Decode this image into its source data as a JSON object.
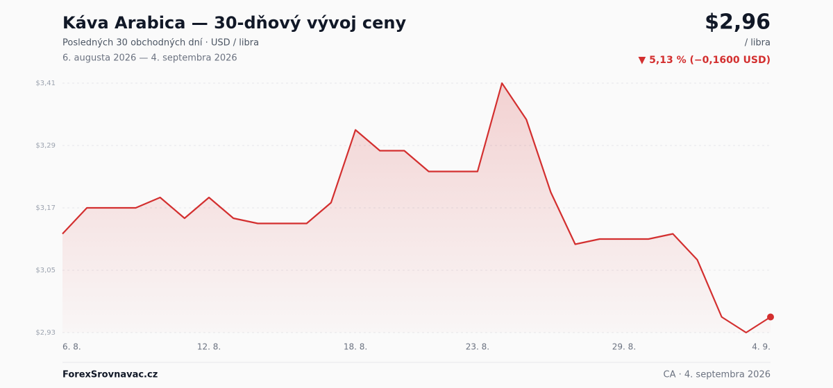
{
  "chart_data": {
    "type": "line",
    "title": "Káva Arabica — 30-dňový vývoj ceny",
    "subtitle": "Posledných 30 obchodných dní · USD / libra",
    "date_range": "6. augusta 2026 — 4. septembra 2026",
    "price": "$2,96",
    "price_unit": "/ libra",
    "change": "▼ 5,13 % (−0,1600 USD)",
    "source": "ForexSrovnavac.cz",
    "footnote": "CA · 4. septembra 2026",
    "categories": [
      "6. 8.",
      null,
      null,
      null,
      null,
      null,
      "12. 8.",
      null,
      null,
      null,
      null,
      null,
      "18. 8.",
      null,
      null,
      null,
      null,
      "23. 8.",
      null,
      null,
      null,
      null,
      null,
      "29. 8.",
      null,
      null,
      null,
      null,
      null,
      "4. 9."
    ],
    "values": [
      3.12,
      3.17,
      3.17,
      3.17,
      3.19,
      3.15,
      3.19,
      3.15,
      3.14,
      3.14,
      3.14,
      3.18,
      3.32,
      3.28,
      3.28,
      3.24,
      3.24,
      3.24,
      3.41,
      3.34,
      3.2,
      3.1,
      3.11,
      3.11,
      3.11,
      3.12,
      3.07,
      2.96,
      2.93,
      2.96
    ],
    "color": "#d32f2f",
    "ylim": [
      2.93,
      3.41
    ],
    "yticks": [
      {
        "value": 3.41,
        "label": "$3,41"
      },
      {
        "value": 3.29,
        "label": "$3,29"
      },
      {
        "value": 3.17,
        "label": "$3,17"
      },
      {
        "value": 3.05,
        "label": "$3,05"
      },
      {
        "value": 2.93,
        "label": "$2,93"
      }
    ],
    "grid": true
  }
}
